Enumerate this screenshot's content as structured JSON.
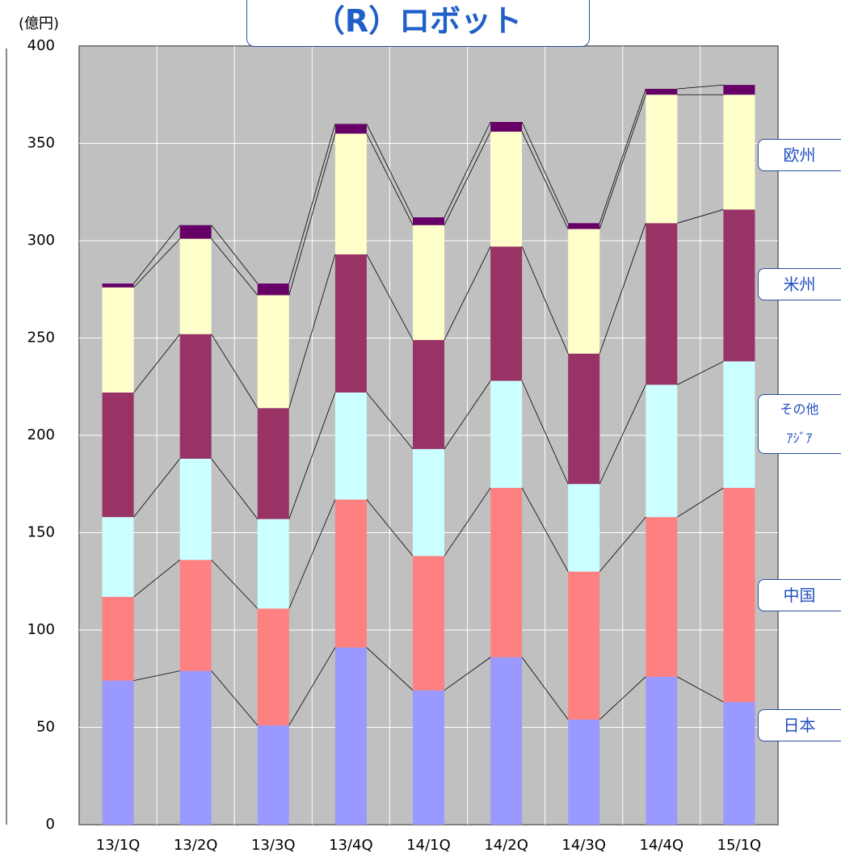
{
  "chart_data": {
    "type": "stacked_bar",
    "title": "（R）ロボット",
    "y_unit": "(億円)",
    "categories": [
      "13/1Q",
      "13/2Q",
      "13/3Q",
      "13/4Q",
      "14/1Q",
      "14/2Q",
      "14/3Q",
      "14/4Q",
      "15/1Q"
    ],
    "series": [
      {
        "name": "日本",
        "color": "#9999ff",
        "values": [
          74,
          79,
          51,
          91,
          69,
          86,
          54,
          76,
          63
        ]
      },
      {
        "name": "中国",
        "color": "#ff8080",
        "values": [
          43,
          57,
          60,
          76,
          69,
          87,
          76,
          82,
          110
        ]
      },
      {
        "name": "その他\nｱｼﾞｱ",
        "color": "#ccffff",
        "values": [
          41,
          52,
          46,
          55,
          55,
          55,
          45,
          68,
          65
        ]
      },
      {
        "name": "米州",
        "color": "#993366",
        "values": [
          64,
          64,
          57,
          71,
          56,
          69,
          67,
          83,
          78
        ]
      },
      {
        "name": "欧州",
        "color": "#ffffcc",
        "values": [
          54,
          49,
          58,
          62,
          59,
          59,
          64,
          66,
          59
        ]
      },
      {
        "color": "#660066",
        "values": [
          2,
          7,
          6,
          5,
          4,
          5,
          3,
          3,
          5
        ]
      }
    ],
    "ylim": [
      0,
      400
    ],
    "yticks": [
      0,
      50,
      100,
      150,
      200,
      250,
      300,
      350,
      400
    ],
    "grid": true
  }
}
